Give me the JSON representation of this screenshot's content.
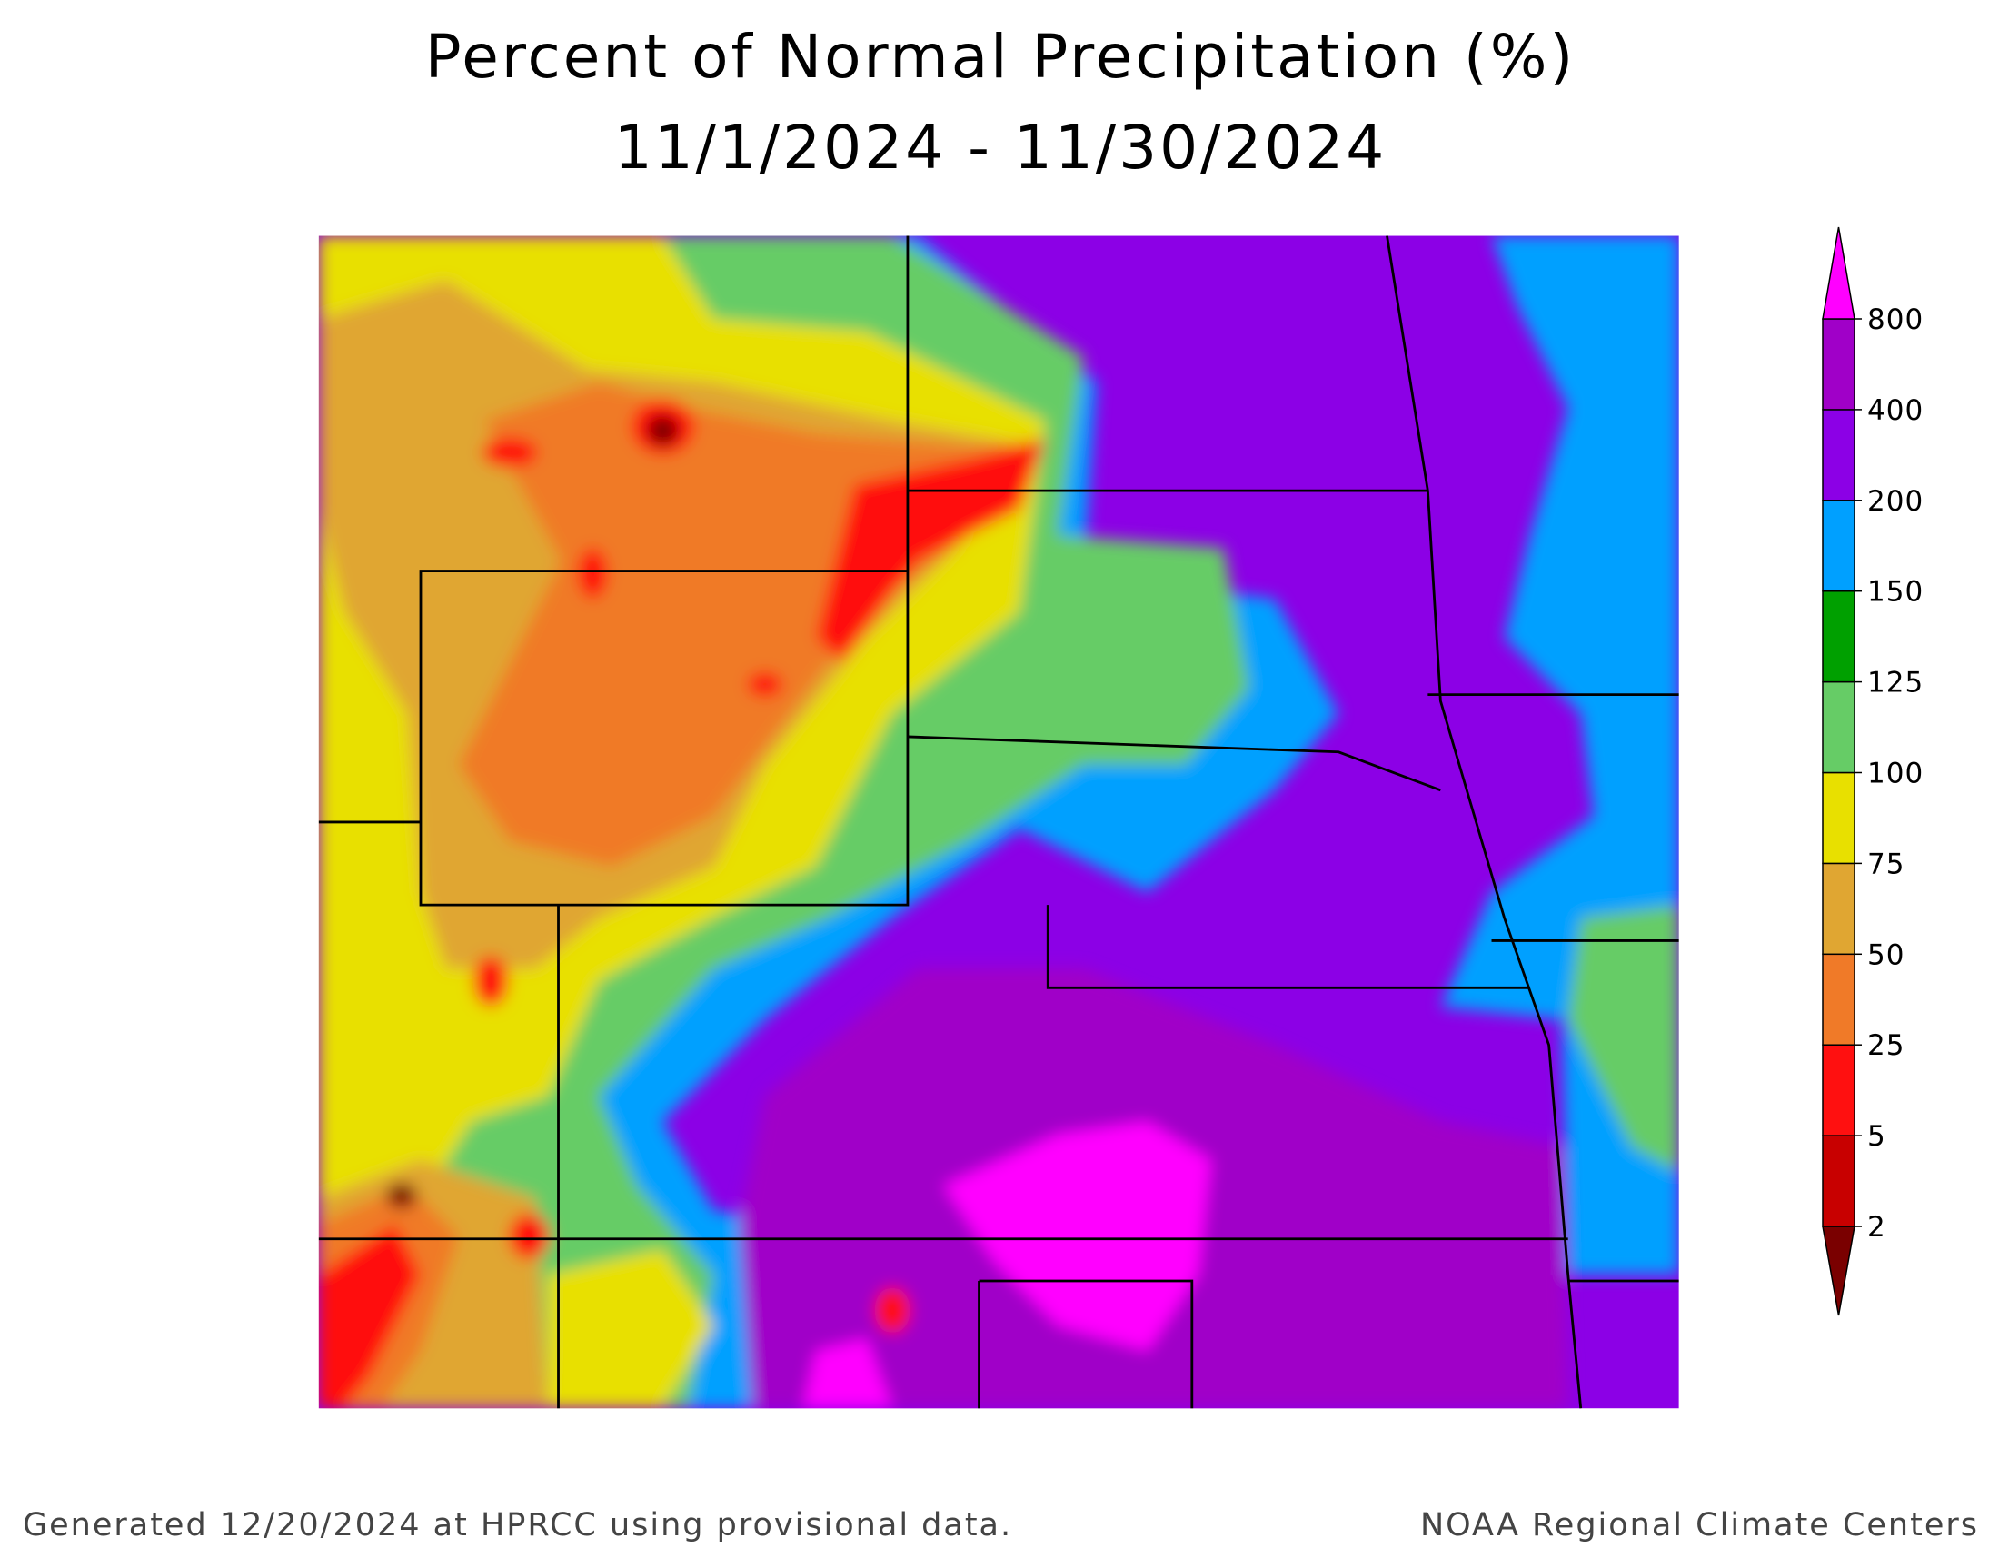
{
  "title": "Percent of Normal Precipitation (%)",
  "subtitle": "11/1/2024 - 11/30/2024",
  "legend": {
    "levels": [
      2,
      5,
      25,
      50,
      75,
      100,
      125,
      150,
      200,
      400,
      800
    ],
    "colors": [
      "#7a0000",
      "#c80000",
      "#ff1010",
      "#f07a28",
      "#e0a632",
      "#e8e000",
      "#66cc66",
      "#00a000",
      "#00a0ff",
      "#8c00e6",
      "#a000c8",
      "#ff00ff"
    ]
  },
  "footer_left": "Generated 12/20/2024 at HPRCC using provisional data.",
  "footer_right": "NOAA Regional Climate Centers"
}
